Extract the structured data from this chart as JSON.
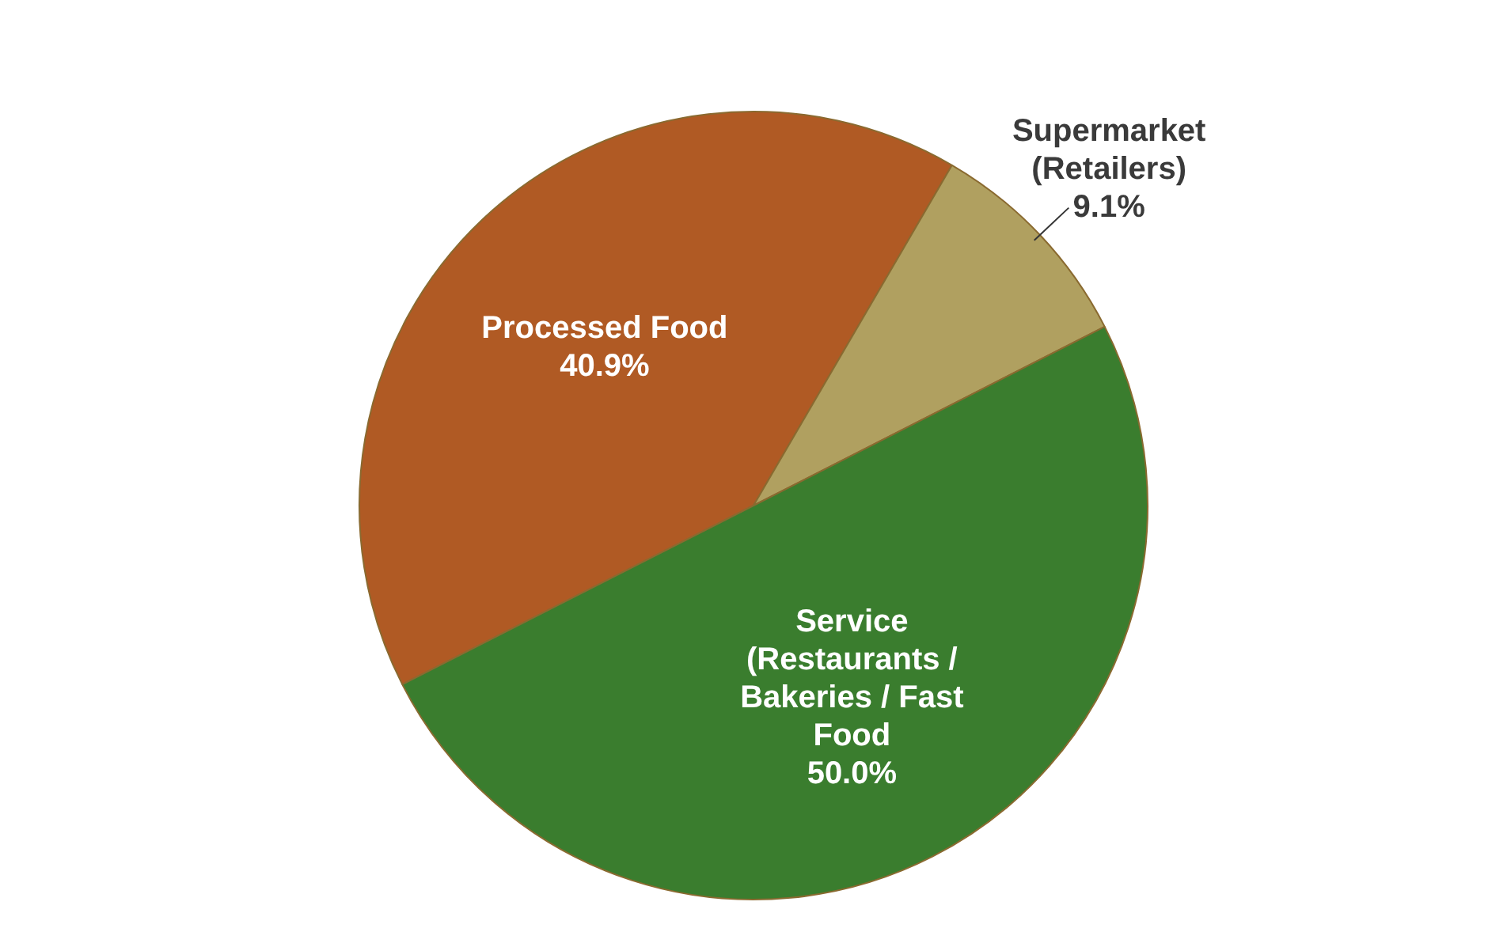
{
  "chart_data": {
    "type": "pie",
    "categories": [
      "Processed Food",
      "Supermarket (Retailers)",
      "Service (Restaurants / Bakeries / Fast Food"
    ],
    "values": [
      40.9,
      9.1,
      50.0
    ],
    "value_labels": [
      "40.9%",
      "9.1%",
      "50.0%"
    ],
    "colors": [
      "#b05a24",
      "#b0a060",
      "#3a7d2e"
    ],
    "legend": false
  }
}
